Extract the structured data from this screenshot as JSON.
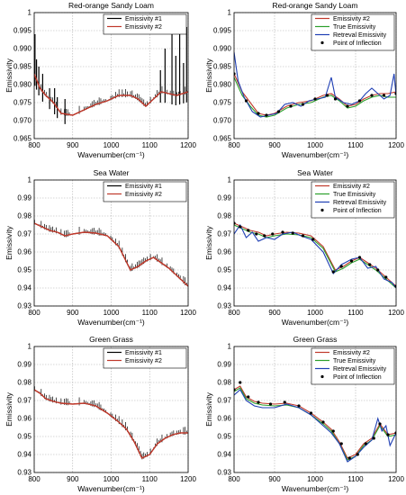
{
  "chart_data": [
    {
      "type": "line",
      "title": "Red-orange Sandy Loam",
      "xlabel": "Wavenumber(cm⁻¹)",
      "ylabel": "Emissivity",
      "xlim": [
        800,
        1200
      ],
      "ylim": [
        0.965,
        1.0
      ],
      "yticks": [
        0.965,
        0.97,
        0.975,
        0.98,
        0.985,
        0.99,
        0.995,
        1
      ],
      "xticks": [
        800,
        900,
        1000,
        1100,
        1200
      ],
      "grid": true,
      "legend_position": "top-right",
      "series": [
        {
          "name": "Emissivity #1",
          "color": "#000000",
          "style": "spiky",
          "x": [
            800,
            815,
            830,
            850,
            870,
            900,
            930,
            960,
            990,
            1020,
            1050,
            1070,
            1090,
            1110,
            1130,
            1150,
            1170,
            1200
          ],
          "y": [
            0.983,
            0.979,
            0.977,
            0.975,
            0.972,
            0.9715,
            0.973,
            0.9745,
            0.9755,
            0.977,
            0.977,
            0.976,
            0.974,
            0.976,
            0.978,
            0.9775,
            0.977,
            0.978
          ],
          "spikes": [
            [
              802,
              0.994
            ],
            [
              806,
              0.987
            ],
            [
              812,
              0.985
            ],
            [
              822,
              0.983
            ],
            [
              840,
              0.979
            ],
            [
              853,
              0.979
            ],
            [
              860,
              0.9765
            ],
            [
              880,
              0.976
            ],
            [
              1128,
              0.984
            ],
            [
              1140,
              0.99
            ],
            [
              1158,
              0.996
            ],
            [
              1168,
              0.988
            ],
            [
              1178,
              0.996
            ],
            [
              1188,
              0.986
            ],
            [
              1196,
              0.996
            ]
          ]
        },
        {
          "name": "Emissivity #2",
          "color": "#c0392b",
          "x": [
            800,
            815,
            830,
            850,
            870,
            900,
            930,
            960,
            990,
            1020,
            1050,
            1070,
            1090,
            1110,
            1130,
            1150,
            1170,
            1200
          ],
          "y": [
            0.983,
            0.979,
            0.977,
            0.975,
            0.972,
            0.9715,
            0.973,
            0.9745,
            0.9755,
            0.977,
            0.977,
            0.976,
            0.974,
            0.976,
            0.978,
            0.9775,
            0.977,
            0.978
          ]
        }
      ]
    },
    {
      "type": "line",
      "title": "Red-orange Sandy Loam",
      "xlabel": "Wavenumber(cm⁻¹)",
      "ylabel": "Emissivity",
      "xlim": [
        800,
        1200
      ],
      "ylim": [
        0.965,
        1.0
      ],
      "yticks": [
        0.965,
        0.97,
        0.975,
        0.98,
        0.985,
        0.99,
        0.995,
        1
      ],
      "xticks": [
        800,
        900,
        1000,
        1100,
        1200
      ],
      "grid": true,
      "legend_position": "top-right",
      "series": [
        {
          "name": "Emissivity #2",
          "color": "#c0392b",
          "x": [
            800,
            820,
            840,
            860,
            880,
            900,
            930,
            960,
            990,
            1020,
            1040,
            1060,
            1080,
            1100,
            1120,
            1140,
            1160,
            1180,
            1200
          ],
          "y": [
            0.983,
            0.978,
            0.975,
            0.972,
            0.9715,
            0.972,
            0.974,
            0.975,
            0.9755,
            0.977,
            0.9775,
            0.976,
            0.974,
            0.9745,
            0.976,
            0.977,
            0.9775,
            0.9775,
            0.978
          ]
        },
        {
          "name": "True Emissivity",
          "color": "#2ca02c",
          "x": [
            800,
            820,
            840,
            860,
            880,
            900,
            930,
            960,
            990,
            1020,
            1040,
            1060,
            1080,
            1100,
            1120,
            1140,
            1160,
            1180,
            1200
          ],
          "y": [
            0.982,
            0.977,
            0.974,
            0.9715,
            0.971,
            0.9715,
            0.9735,
            0.9745,
            0.975,
            0.9765,
            0.977,
            0.9755,
            0.9735,
            0.974,
            0.9755,
            0.9765,
            0.977,
            0.9765,
            0.9765
          ]
        },
        {
          "name": "Retreval Emissivity",
          "color": "#1f3fb4",
          "x": [
            800,
            810,
            825,
            845,
            865,
            885,
            905,
            925,
            945,
            965,
            985,
            1005,
            1025,
            1040,
            1050,
            1070,
            1090,
            1110,
            1125,
            1140,
            1155,
            1170,
            1185,
            1195,
            1200
          ],
          "y": [
            0.989,
            0.981,
            0.9765,
            0.9725,
            0.971,
            0.9715,
            0.972,
            0.9745,
            0.975,
            0.974,
            0.9755,
            0.976,
            0.9765,
            0.982,
            0.9765,
            0.975,
            0.9745,
            0.9755,
            0.9775,
            0.979,
            0.9775,
            0.976,
            0.977,
            0.983,
            0.977
          ]
        },
        {
          "name": "Point of Inflection",
          "color": "#000000",
          "style": "markers",
          "x": [
            800,
            830,
            860,
            880,
            910,
            940,
            970,
            1000,
            1030,
            1050,
            1080,
            1110,
            1140,
            1170,
            1200
          ],
          "y": [
            0.983,
            0.9755,
            0.972,
            0.9715,
            0.9725,
            0.974,
            0.9745,
            0.976,
            0.977,
            0.976,
            0.974,
            0.9755,
            0.977,
            0.977,
            0.9775
          ]
        }
      ]
    },
    {
      "type": "line",
      "title": "Sea Water",
      "xlabel": "Wavenumber(cm⁻¹)",
      "ylabel": "Emissivity",
      "xlim": [
        800,
        1200
      ],
      "ylim": [
        0.93,
        1.0
      ],
      "yticks": [
        0.93,
        0.94,
        0.95,
        0.96,
        0.97,
        0.98,
        0.99,
        1
      ],
      "xticks": [
        800,
        900,
        1000,
        1100,
        1200
      ],
      "grid": true,
      "legend_position": "top-right",
      "series": [
        {
          "name": "Emissivity #1",
          "color": "#000000",
          "style": "spiky",
          "x": [
            800,
            820,
            840,
            860,
            880,
            900,
            930,
            960,
            990,
            1020,
            1050,
            1070,
            1090,
            1110,
            1130,
            1150,
            1170,
            1200
          ],
          "y": [
            0.976,
            0.974,
            0.972,
            0.971,
            0.969,
            0.97,
            0.971,
            0.9705,
            0.969,
            0.963,
            0.95,
            0.952,
            0.955,
            0.957,
            0.954,
            0.951,
            0.947,
            0.941
          ]
        },
        {
          "name": "Emissivity #2",
          "color": "#c0392b",
          "x": [
            800,
            820,
            840,
            860,
            880,
            900,
            930,
            960,
            990,
            1020,
            1050,
            1070,
            1090,
            1110,
            1130,
            1150,
            1170,
            1200
          ],
          "y": [
            0.976,
            0.974,
            0.972,
            0.971,
            0.969,
            0.97,
            0.971,
            0.9705,
            0.969,
            0.963,
            0.95,
            0.952,
            0.955,
            0.957,
            0.954,
            0.951,
            0.947,
            0.941
          ]
        }
      ]
    },
    {
      "type": "line",
      "title": "Sea Water",
      "xlabel": "Wavenumber(cm⁻¹)",
      "ylabel": "Emissivity",
      "xlim": [
        800,
        1200
      ],
      "ylim": [
        0.93,
        1.0
      ],
      "yticks": [
        0.93,
        0.94,
        0.95,
        0.96,
        0.97,
        0.98,
        0.99,
        1
      ],
      "xticks": [
        800,
        900,
        1000,
        1100,
        1200
      ],
      "grid": true,
      "legend_position": "top-right",
      "series": [
        {
          "name": "Emissivity #2",
          "color": "#c0392b",
          "x": [
            800,
            820,
            840,
            860,
            880,
            900,
            930,
            960,
            990,
            1020,
            1050,
            1070,
            1090,
            1110,
            1130,
            1150,
            1170,
            1200
          ],
          "y": [
            0.976,
            0.974,
            0.972,
            0.971,
            0.969,
            0.97,
            0.971,
            0.9705,
            0.969,
            0.963,
            0.95,
            0.952,
            0.955,
            0.957,
            0.954,
            0.951,
            0.947,
            0.941
          ]
        },
        {
          "name": "True Emissivity",
          "color": "#2ca02c",
          "x": [
            800,
            820,
            840,
            860,
            880,
            900,
            930,
            960,
            990,
            1020,
            1050,
            1070,
            1090,
            1110,
            1130,
            1150,
            1170,
            1200
          ],
          "y": [
            0.975,
            0.973,
            0.971,
            0.97,
            0.968,
            0.969,
            0.97,
            0.9695,
            0.968,
            0.962,
            0.949,
            0.951,
            0.954,
            0.956,
            0.953,
            0.95,
            0.946,
            0.94
          ]
        },
        {
          "name": "Retreval Emissivity",
          "color": "#1f3fb4",
          "x": [
            800,
            815,
            830,
            845,
            860,
            880,
            900,
            920,
            945,
            965,
            990,
            1020,
            1045,
            1065,
            1090,
            1110,
            1130,
            1150,
            1170,
            1190,
            1200
          ],
          "y": [
            0.97,
            0.975,
            0.968,
            0.971,
            0.966,
            0.968,
            0.967,
            0.97,
            0.971,
            0.969,
            0.967,
            0.96,
            0.948,
            0.953,
            0.956,
            0.957,
            0.951,
            0.952,
            0.945,
            0.943,
            0.94
          ]
        },
        {
          "name": "Point of Inflection",
          "color": "#000000",
          "style": "markers",
          "x": [
            800,
            815,
            835,
            855,
            875,
            895,
            920,
            945,
            970,
            995,
            1045,
            1065,
            1090,
            1110,
            1135,
            1155,
            1175,
            1200
          ],
          "y": [
            0.976,
            0.974,
            0.972,
            0.97,
            0.969,
            0.97,
            0.971,
            0.9705,
            0.969,
            0.967,
            0.949,
            0.952,
            0.955,
            0.957,
            0.953,
            0.95,
            0.946,
            0.941
          ]
        }
      ]
    },
    {
      "type": "line",
      "title": "Green Grass",
      "xlabel": "Wavenumber(cm⁻¹)",
      "ylabel": "Emissivity",
      "xlim": [
        800,
        1200
      ],
      "ylim": [
        0.93,
        1.0
      ],
      "yticks": [
        0.93,
        0.94,
        0.95,
        0.96,
        0.97,
        0.98,
        0.99,
        1
      ],
      "xticks": [
        800,
        900,
        1000,
        1100,
        1200
      ],
      "grid": true,
      "legend_position": "top-right",
      "series": [
        {
          "name": "Emissivity #1",
          "color": "#000000",
          "style": "spiky",
          "x": [
            800,
            815,
            830,
            850,
            870,
            900,
            930,
            960,
            990,
            1020,
            1040,
            1060,
            1080,
            1100,
            1120,
            1140,
            1160,
            1180,
            1200
          ],
          "y": [
            0.976,
            0.974,
            0.971,
            0.9695,
            0.9685,
            0.968,
            0.9685,
            0.967,
            0.963,
            0.958,
            0.954,
            0.947,
            0.938,
            0.94,
            0.946,
            0.949,
            0.951,
            0.952,
            0.952
          ]
        },
        {
          "name": "Emissivity #2",
          "color": "#c0392b",
          "x": [
            800,
            815,
            830,
            850,
            870,
            900,
            930,
            960,
            990,
            1020,
            1040,
            1060,
            1080,
            1100,
            1120,
            1140,
            1160,
            1180,
            1200
          ],
          "y": [
            0.976,
            0.974,
            0.971,
            0.9695,
            0.9685,
            0.968,
            0.9685,
            0.967,
            0.963,
            0.958,
            0.954,
            0.947,
            0.938,
            0.94,
            0.946,
            0.949,
            0.951,
            0.952,
            0.952
          ]
        }
      ]
    },
    {
      "type": "line",
      "title": "Green Grass",
      "xlabel": "Wavenumber(cm⁻¹)",
      "ylabel": "Emissivity",
      "xlim": [
        800,
        1200
      ],
      "ylim": [
        0.93,
        1.0
      ],
      "yticks": [
        0.93,
        0.94,
        0.95,
        0.96,
        0.97,
        0.98,
        0.99,
        1
      ],
      "xticks": [
        800,
        900,
        1000,
        1100,
        1200
      ],
      "grid": true,
      "legend_position": "top-right",
      "series": [
        {
          "name": "Emissivity #2",
          "color": "#c0392b",
          "x": [
            800,
            815,
            830,
            850,
            870,
            900,
            930,
            960,
            990,
            1020,
            1040,
            1060,
            1080,
            1100,
            1120,
            1140,
            1160,
            1180,
            1200
          ],
          "y": [
            0.976,
            0.978,
            0.972,
            0.9695,
            0.9685,
            0.968,
            0.9685,
            0.967,
            0.963,
            0.958,
            0.954,
            0.947,
            0.938,
            0.94,
            0.946,
            0.949,
            0.957,
            0.951,
            0.952
          ]
        },
        {
          "name": "True Emissivity",
          "color": "#2ca02c",
          "x": [
            800,
            815,
            830,
            850,
            870,
            900,
            930,
            960,
            990,
            1020,
            1040,
            1060,
            1080,
            1100,
            1120,
            1140,
            1160,
            1180,
            1200
          ],
          "y": [
            0.975,
            0.977,
            0.971,
            0.9685,
            0.9675,
            0.967,
            0.9675,
            0.966,
            0.962,
            0.957,
            0.953,
            0.946,
            0.937,
            0.939,
            0.945,
            0.948,
            0.956,
            0.95,
            0.951
          ]
        },
        {
          "name": "Retreval Emissivity",
          "color": "#1f3fb4",
          "x": [
            800,
            815,
            830,
            850,
            870,
            900,
            930,
            960,
            990,
            1020,
            1040,
            1060,
            1080,
            1100,
            1120,
            1140,
            1155,
            1165,
            1175,
            1185,
            1200
          ],
          "y": [
            0.973,
            0.976,
            0.97,
            0.967,
            0.966,
            0.966,
            0.968,
            0.966,
            0.962,
            0.956,
            0.952,
            0.946,
            0.936,
            0.939,
            0.944,
            0.948,
            0.96,
            0.953,
            0.956,
            0.945,
            0.952
          ]
        },
        {
          "name": "Point of Inflection",
          "color": "#000000",
          "style": "markers",
          "x": [
            800,
            815,
            835,
            860,
            890,
            925,
            960,
            990,
            1020,
            1045,
            1065,
            1085,
            1105,
            1125,
            1145,
            1160,
            1180,
            1200
          ],
          "y": [
            0.976,
            0.98,
            0.972,
            0.969,
            0.968,
            0.969,
            0.967,
            0.963,
            0.958,
            0.953,
            0.946,
            0.938,
            0.94,
            0.946,
            0.949,
            0.957,
            0.951,
            0.952
          ]
        }
      ]
    }
  ]
}
